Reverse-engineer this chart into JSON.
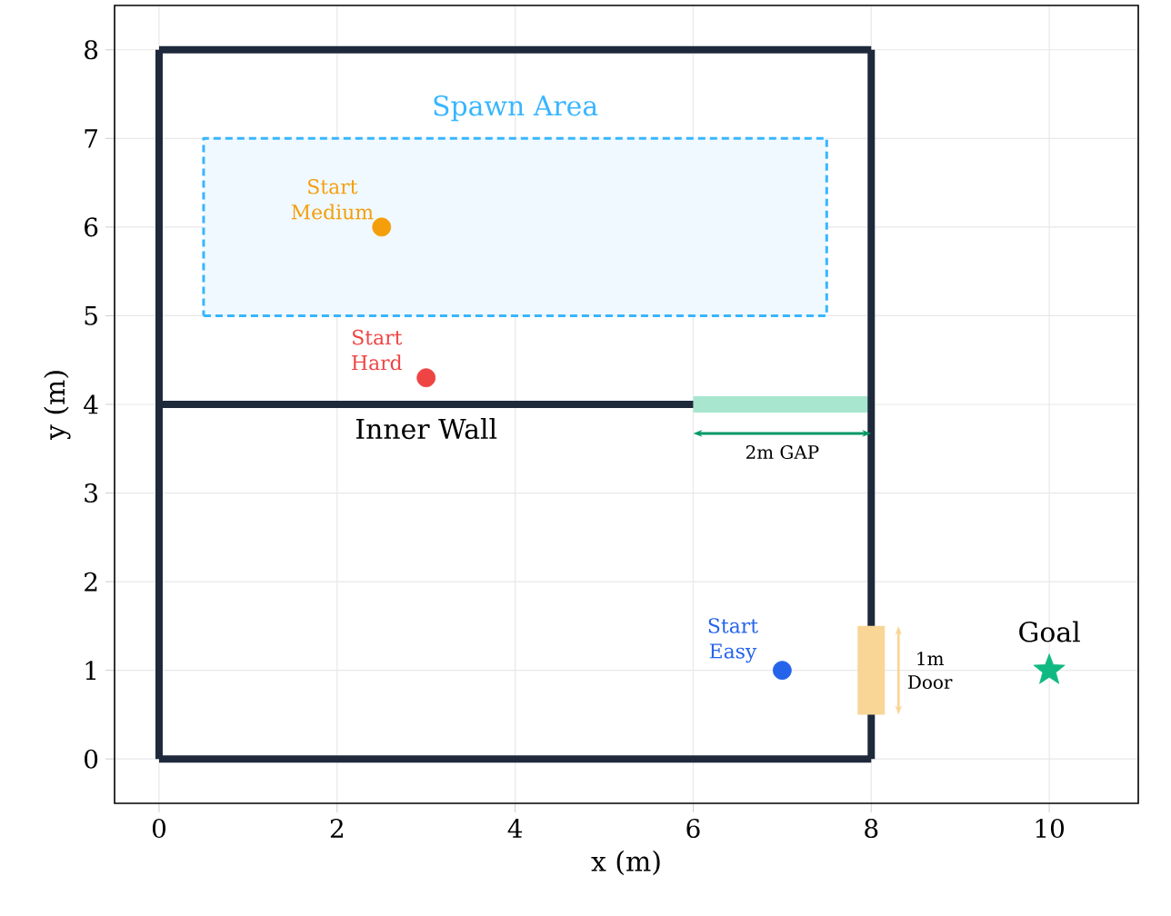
{
  "chart_data": {
    "type": "line",
    "xlabel": "x (m)",
    "ylabel": "y (m)",
    "xlim": [
      -0.5,
      11
    ],
    "ylim": [
      -0.5,
      8.5
    ],
    "xticks": [
      0,
      2,
      4,
      6,
      8,
      10
    ],
    "yticks": [
      0,
      1,
      2,
      3,
      4,
      5,
      6,
      7,
      8
    ],
    "grid": true,
    "series": [
      {
        "type": "area",
        "name": "Spawn Area",
        "color": "#38b6ff",
        "line_style": "dashed",
        "x": [
          0.5,
          7.5,
          7.5,
          0.5,
          0.5
        ],
        "values": [
          5,
          5,
          7,
          7,
          5
        ]
      },
      {
        "name": "2m GAP",
        "color": "#a8e6cf",
        "x": [
          6,
          8
        ],
        "values": [
          4,
          4
        ]
      },
      {
        "name": "1m Door",
        "color": "#f9d596",
        "x": [
          8,
          8
        ],
        "values": [
          0.5,
          1.5
        ]
      },
      {
        "color": "#1e293b",
        "x": [
          0,
          8
        ],
        "values": [
          8,
          8
        ]
      },
      {
        "color": "#1e293b",
        "x": [
          0,
          0
        ],
        "values": [
          0,
          8
        ]
      },
      {
        "color": "#1e293b",
        "x": [
          0,
          8
        ],
        "values": [
          0,
          0
        ]
      },
      {
        "color": "#1e293b",
        "x": [
          8,
          8
        ],
        "values": [
          1.5,
          8
        ]
      },
      {
        "color": "#1e293b",
        "x": [
          8,
          8
        ],
        "values": [
          0,
          0.5
        ]
      },
      {
        "name": "Inner Wall",
        "color": "#1e293b",
        "x": [
          0,
          6
        ],
        "values": [
          4,
          4
        ]
      },
      {
        "type": "scatter",
        "name": "Start Medium",
        "color": "#f59e0b",
        "marker": "circle",
        "x": [
          2.5
        ],
        "values": [
          6
        ]
      },
      {
        "type": "scatter",
        "name": "Start Hard",
        "color": "#ef4444",
        "marker": "circle",
        "x": [
          3
        ],
        "values": [
          4.3
        ]
      },
      {
        "type": "scatter",
        "name": "Start Easy",
        "color": "#2563eb",
        "marker": "circle",
        "x": [
          7
        ],
        "values": [
          1
        ]
      },
      {
        "type": "scatter",
        "name": "Goal",
        "color": "#10b981",
        "marker": "star",
        "x": [
          10
        ],
        "values": [
          1
        ]
      }
    ]
  }
}
